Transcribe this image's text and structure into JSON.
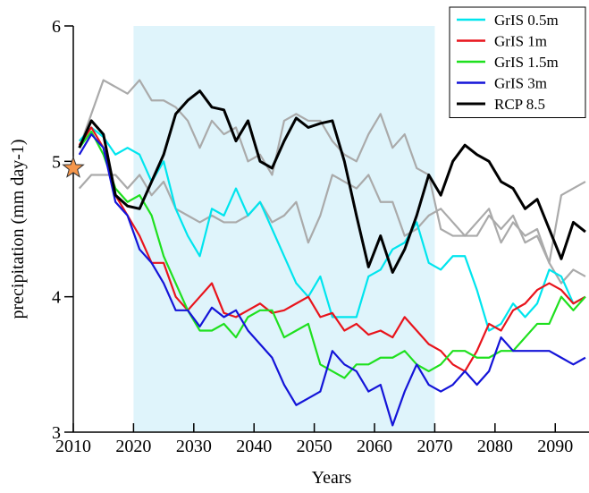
{
  "chart_data": {
    "type": "line",
    "xlabel": "Years",
    "ylabel": "precipitation (mm day-1)",
    "xlim": [
      2010,
      2095.6
    ],
    "ylim": [
      3,
      6
    ],
    "xticks": [
      2010,
      2020,
      2030,
      2040,
      2050,
      2060,
      2070,
      2080,
      2090
    ],
    "yticks": [
      3,
      4,
      5,
      6
    ],
    "span": {
      "x": [
        2020,
        2070
      ],
      "color": "#dff4fb"
    },
    "legend": "upper right",
    "x": [
      2011,
      2013,
      2015,
      2017,
      2019,
      2021,
      2023,
      2025,
      2027,
      2029,
      2031,
      2033,
      2035,
      2037,
      2039,
      2041,
      2043,
      2045,
      2047,
      2049,
      2051,
      2053,
      2055,
      2057,
      2059,
      2061,
      2063,
      2065,
      2067,
      2069,
      2071,
      2073,
      2075,
      2077,
      2079,
      2081,
      2083,
      2085,
      2087,
      2089,
      2091,
      2093,
      2095
    ],
    "series": [
      {
        "color": "#aaaaaa",
        "values": [
          5.1,
          5.35,
          5.6,
          5.55,
          5.5,
          5.6,
          5.45,
          5.45,
          5.4,
          5.3,
          5.1,
          5.3,
          5.2,
          5.25,
          5.0,
          5.05,
          4.9,
          5.3,
          5.35,
          5.3,
          5.3,
          5.15,
          5.05,
          5.0,
          5.2,
          5.35,
          5.1,
          5.2,
          4.95,
          4.9,
          4.5,
          4.45,
          4.45,
          4.45,
          4.6,
          4.5,
          4.6,
          4.4,
          4.45,
          4.25,
          4.1,
          4.2,
          4.15
        ]
      },
      {
        "color": "#aaaaaa",
        "values": [
          4.8,
          4.9,
          4.9,
          4.9,
          4.8,
          4.9,
          4.75,
          4.85,
          4.65,
          4.6,
          4.55,
          4.6,
          4.55,
          4.55,
          4.6,
          4.7,
          4.55,
          4.6,
          4.7,
          4.4,
          4.6,
          4.9,
          4.85,
          4.8,
          4.9,
          4.7,
          4.7,
          4.45,
          4.5,
          4.6,
          4.65,
          4.55,
          4.45,
          4.55,
          4.65,
          4.4,
          4.55,
          4.45,
          4.5,
          4.25,
          4.75,
          4.8,
          4.85
        ]
      },
      {
        "name": "GrIS 0.5m",
        "color": "#00e5ee",
        "values": [
          5.15,
          5.25,
          5.18,
          5.05,
          5.1,
          5.05,
          4.85,
          5.0,
          4.65,
          4.45,
          4.3,
          4.65,
          4.6,
          4.8,
          4.6,
          4.7,
          4.5,
          4.3,
          4.1,
          4.0,
          4.15,
          3.85,
          3.85,
          3.85,
          4.15,
          4.2,
          4.35,
          4.4,
          4.55,
          4.25,
          4.2,
          4.3,
          4.3,
          4.05,
          3.75,
          3.8,
          3.95,
          3.85,
          3.95,
          4.2,
          4.15,
          3.95,
          4.0
        ]
      },
      {
        "name": "GrIS 1m",
        "color": "#e8141c",
        "values": [
          5.12,
          5.25,
          5.1,
          4.75,
          4.6,
          4.45,
          4.25,
          4.25,
          4.0,
          3.9,
          4.0,
          4.1,
          3.88,
          3.85,
          3.9,
          3.95,
          3.88,
          3.9,
          3.95,
          4.0,
          3.85,
          3.88,
          3.75,
          3.8,
          3.72,
          3.75,
          3.7,
          3.85,
          3.75,
          3.65,
          3.6,
          3.5,
          3.45,
          3.6,
          3.8,
          3.75,
          3.9,
          3.95,
          4.05,
          4.1,
          4.05,
          3.95,
          4.0
        ]
      },
      {
        "name": "GrIS 1.5m",
        "color": "#1ee01e",
        "values": [
          5.1,
          5.22,
          5.05,
          4.8,
          4.7,
          4.75,
          4.6,
          4.3,
          4.1,
          3.9,
          3.75,
          3.75,
          3.8,
          3.7,
          3.85,
          3.9,
          3.9,
          3.7,
          3.75,
          3.8,
          3.5,
          3.45,
          3.4,
          3.5,
          3.5,
          3.55,
          3.55,
          3.6,
          3.5,
          3.45,
          3.5,
          3.6,
          3.6,
          3.55,
          3.55,
          3.6,
          3.6,
          3.7,
          3.8,
          3.8,
          4.0,
          3.9,
          4.0
        ]
      },
      {
        "name": "GrIS 3m",
        "color": "#1414d8",
        "values": [
          5.05,
          5.2,
          5.1,
          4.7,
          4.6,
          4.35,
          4.25,
          4.1,
          3.9,
          3.9,
          3.78,
          3.92,
          3.85,
          3.9,
          3.75,
          3.65,
          3.55,
          3.35,
          3.2,
          3.25,
          3.3,
          3.6,
          3.5,
          3.45,
          3.3,
          3.35,
          3.05,
          3.3,
          3.5,
          3.35,
          3.3,
          3.35,
          3.45,
          3.35,
          3.45,
          3.7,
          3.6,
          3.6,
          3.6,
          3.6,
          3.55,
          3.5,
          3.55
        ]
      },
      {
        "name": "RCP 8.5",
        "color": "#000000",
        "width": 3,
        "values": [
          5.1,
          5.3,
          5.2,
          4.75,
          4.67,
          4.65,
          4.85,
          5.05,
          5.35,
          5.45,
          5.52,
          5.4,
          5.38,
          5.15,
          5.3,
          5.0,
          4.95,
          5.15,
          5.32,
          5.25,
          5.28,
          5.3,
          5.0,
          4.6,
          4.22,
          4.45,
          4.18,
          4.35,
          4.6,
          4.9,
          4.75,
          5.0,
          5.12,
          5.05,
          5.0,
          4.85,
          4.8,
          4.65,
          4.72,
          4.5,
          4.28,
          4.55,
          4.48
        ]
      }
    ],
    "markers": {
      "x": [
        2010
      ],
      "y": [
        4.95
      ],
      "color": "#f5964b"
    }
  }
}
